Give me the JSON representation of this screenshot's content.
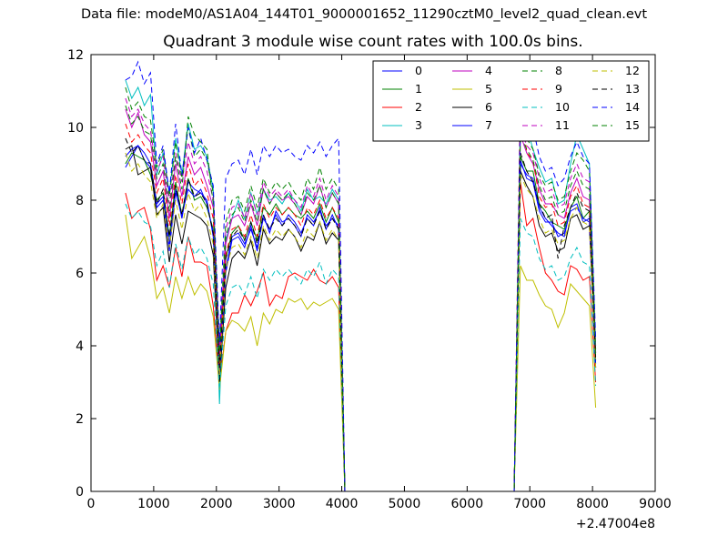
{
  "suptitle": "Data file: modeM0/AS1A04_144T01_9000001652_11290cztM0_level2_quad_clean.evt",
  "chart_data": {
    "type": "line",
    "title": "Quadrant 3 module wise count rates with 100.0s bins.",
    "xlabel": "",
    "ylabel": "",
    "x_offset_label": "+2.47004e8",
    "xlim": [
      0,
      9000
    ],
    "ylim": [
      0,
      12
    ],
    "x_ticks": [
      0,
      1000,
      2000,
      3000,
      4000,
      5000,
      6000,
      7000,
      8000,
      9000
    ],
    "y_ticks": [
      0,
      2,
      4,
      6,
      8,
      10,
      12
    ],
    "legend_position": "top-right",
    "x": [
      550,
      650,
      750,
      850,
      950,
      1050,
      1150,
      1250,
      1350,
      1450,
      1550,
      1650,
      1750,
      1850,
      1950,
      2050,
      2150,
      2250,
      2350,
      2450,
      2550,
      2650,
      2750,
      2850,
      2950,
      3050,
      3150,
      3250,
      3350,
      3450,
      3550,
      3650,
      3750,
      3850,
      3950,
      4050,
      6750,
      6850,
      6950,
      7050,
      7150,
      7250,
      7350,
      7450,
      7550,
      7650,
      7750,
      7850,
      7950,
      8050
    ],
    "series": [
      {
        "name": "0",
        "color": "#0000ff",
        "dash": "solid",
        "values": [
          8.9,
          9.2,
          9.5,
          9.1,
          8.9,
          7.8,
          8.0,
          6.6,
          8.3,
          7.5,
          8.5,
          8.3,
          8.2,
          8.0,
          7.0,
          3.3,
          6.0,
          6.9,
          7.0,
          6.7,
          7.3,
          6.6,
          7.6,
          7.1,
          7.7,
          7.4,
          7.5,
          7.3,
          7.0,
          7.6,
          7.4,
          7.7,
          7.3,
          7.5,
          7.3,
          0,
          0,
          9.0,
          8.7,
          8.6,
          7.8,
          7.5,
          7.3,
          7.1,
          7.0,
          7.8,
          7.9,
          7.4,
          7.5,
          3.5
        ]
      },
      {
        "name": "1",
        "color": "#008000",
        "dash": "solid",
        "values": [
          9.0,
          9.3,
          9.2,
          9.1,
          8.7,
          8.0,
          8.2,
          7.0,
          8.5,
          7.6,
          8.6,
          8.0,
          8.1,
          7.8,
          7.2,
          3.5,
          6.4,
          7.1,
          7.3,
          6.9,
          7.4,
          6.9,
          7.8,
          7.6,
          7.9,
          7.6,
          7.8,
          7.6,
          7.5,
          7.7,
          7.5,
          7.9,
          7.4,
          7.8,
          7.4,
          0,
          0,
          9.2,
          8.8,
          8.8,
          7.9,
          7.7,
          7.4,
          7.3,
          7.2,
          7.8,
          8.1,
          7.5,
          7.7,
          3.6
        ]
      },
      {
        "name": "2",
        "color": "#ff0000",
        "dash": "solid",
        "values": [
          8.2,
          7.5,
          7.7,
          7.8,
          7.2,
          5.8,
          6.2,
          5.6,
          6.7,
          5.9,
          7.0,
          6.3,
          6.3,
          6.2,
          5.1,
          3.0,
          4.4,
          4.9,
          4.9,
          5.4,
          5.1,
          5.5,
          6.0,
          5.1,
          5.4,
          5.3,
          5.9,
          6.0,
          5.9,
          5.8,
          6.1,
          5.8,
          5.7,
          5.9,
          5.6,
          0,
          0,
          8.5,
          7.3,
          7.5,
          6.7,
          6.0,
          5.8,
          5.5,
          5.4,
          6.2,
          6.1,
          5.8,
          5.9,
          3.0
        ]
      },
      {
        "name": "3",
        "color": "#00bfbf",
        "dash": "solid",
        "values": [
          11.3,
          10.8,
          11.1,
          10.6,
          10.9,
          8.7,
          9.3,
          8.2,
          9.7,
          8.7,
          10.1,
          9.4,
          9.5,
          9.2,
          8.3,
          2.4,
          6.9,
          7.5,
          8.0,
          7.5,
          8.2,
          7.6,
          8.3,
          8.0,
          8.1,
          7.9,
          8.2,
          8.0,
          7.7,
          8.3,
          8.0,
          8.1,
          7.9,
          8.3,
          8.0,
          0,
          0,
          10.3,
          10.0,
          9.4,
          8.9,
          8.5,
          8.6,
          7.9,
          8.0,
          9.0,
          9.8,
          9.4,
          9.0,
          4.0
        ]
      },
      {
        "name": "4",
        "color": "#bf00bf",
        "dash": "solid",
        "values": [
          10.5,
          10.0,
          10.4,
          9.8,
          9.6,
          8.4,
          8.8,
          7.5,
          9.0,
          8.1,
          9.2,
          8.7,
          8.9,
          8.4,
          7.8,
          3.6,
          6.8,
          7.5,
          7.6,
          7.3,
          7.9,
          7.3,
          8.3,
          7.9,
          8.2,
          8.0,
          8.1,
          7.9,
          7.6,
          8.1,
          7.9,
          8.4,
          7.8,
          8.2,
          7.9,
          0,
          0,
          9.8,
          9.3,
          9.0,
          8.3,
          7.9,
          7.9,
          7.6,
          7.5,
          8.2,
          8.6,
          8.1,
          8.0,
          3.8
        ]
      },
      {
        "name": "5",
        "color": "#bfbf00",
        "dash": "solid",
        "values": [
          7.6,
          6.4,
          6.7,
          7.0,
          6.4,
          5.3,
          5.6,
          4.9,
          5.9,
          5.3,
          5.9,
          5.4,
          5.7,
          5.5,
          4.8,
          2.8,
          4.4,
          4.7,
          4.6,
          4.4,
          4.8,
          4.0,
          4.9,
          4.6,
          5.0,
          4.9,
          5.3,
          5.2,
          5.3,
          5.0,
          5.2,
          5.1,
          5.2,
          5.3,
          5.0,
          0,
          0,
          6.2,
          5.8,
          5.8,
          5.4,
          5.1,
          5.0,
          4.5,
          4.9,
          5.7,
          5.5,
          5.3,
          5.1,
          2.3
        ]
      },
      {
        "name": "6",
        "color": "#000000",
        "dash": "solid",
        "values": [
          9.4,
          9.5,
          8.7,
          8.8,
          8.9,
          7.6,
          7.8,
          6.3,
          7.6,
          6.8,
          7.7,
          7.6,
          7.5,
          7.3,
          6.5,
          3.0,
          5.6,
          6.4,
          6.6,
          6.4,
          6.9,
          6.2,
          7.2,
          6.8,
          7.0,
          6.9,
          7.2,
          7.0,
          6.6,
          7.0,
          6.9,
          7.4,
          6.8,
          7.1,
          6.9,
          0,
          0,
          8.8,
          8.4,
          8.1,
          7.3,
          7.0,
          7.1,
          6.6,
          6.7,
          7.5,
          7.6,
          7.2,
          7.3,
          3.4
        ]
      },
      {
        "name": "7",
        "color": "#0000ff",
        "dash": "solid",
        "values": [
          9.2,
          9.4,
          9.5,
          9.3,
          9.0,
          7.9,
          8.1,
          6.8,
          8.2,
          7.6,
          8.3,
          8.1,
          8.3,
          7.9,
          7.1,
          3.2,
          6.1,
          7.0,
          7.1,
          6.8,
          7.2,
          6.7,
          7.5,
          7.2,
          7.6,
          7.3,
          7.6,
          7.4,
          7.1,
          7.5,
          7.3,
          7.8,
          7.2,
          7.6,
          7.2,
          0,
          0,
          9.1,
          8.6,
          8.5,
          7.7,
          7.4,
          7.4,
          7.0,
          7.1,
          7.7,
          7.8,
          7.5,
          7.4,
          3.4
        ]
      },
      {
        "name": "8",
        "color": "#008000",
        "dash": "dashed",
        "values": [
          11.1,
          10.5,
          10.7,
          10.3,
          10.2,
          8.9,
          9.4,
          8.1,
          9.6,
          8.6,
          10.0,
          9.2,
          9.4,
          9.1,
          8.2,
          3.9,
          7.4,
          8.0,
          8.1,
          7.7,
          8.4,
          7.8,
          8.6,
          8.2,
          8.5,
          8.3,
          8.5,
          8.2,
          8.0,
          8.6,
          8.3,
          8.9,
          8.3,
          8.6,
          8.3,
          0,
          0,
          10.1,
          9.7,
          9.4,
          8.7,
          8.4,
          8.5,
          8.0,
          8.1,
          8.8,
          9.3,
          9.1,
          8.8,
          3.9
        ]
      },
      {
        "name": "9",
        "color": "#ff0000",
        "dash": "dashed",
        "values": [
          10.1,
          9.6,
          9.8,
          9.5,
          9.3,
          8.2,
          8.6,
          7.3,
          8.7,
          7.9,
          9.0,
          8.4,
          8.6,
          8.2,
          7.5,
          3.3,
          6.5,
          7.2,
          7.3,
          7.0,
          7.6,
          7.0,
          7.9,
          7.5,
          7.8,
          7.6,
          7.8,
          7.6,
          7.3,
          7.8,
          7.6,
          8.0,
          7.5,
          7.8,
          7.5,
          0,
          0,
          11.0,
          9.3,
          9.1,
          8.1,
          7.8,
          7.9,
          7.3,
          7.4,
          8.1,
          8.4,
          7.9,
          7.8,
          3.7
        ]
      },
      {
        "name": "10",
        "color": "#00bfbf",
        "dash": "dashed",
        "values": [
          7.9,
          7.5,
          7.7,
          7.4,
          7.3,
          6.2,
          6.6,
          5.6,
          6.8,
          6.1,
          7.0,
          6.5,
          6.7,
          6.4,
          5.7,
          2.8,
          5.1,
          5.6,
          5.7,
          5.4,
          5.9,
          5.3,
          6.1,
          5.8,
          6.1,
          5.9,
          6.1,
          5.9,
          5.7,
          6.1,
          5.9,
          6.3,
          5.7,
          6.1,
          5.9,
          0,
          0,
          7.5,
          7.1,
          7.0,
          6.4,
          6.1,
          6.2,
          5.8,
          5.9,
          6.4,
          6.7,
          6.3,
          6.2,
          2.9
        ]
      },
      {
        "name": "11",
        "color": "#bf00bf",
        "dash": "dashed",
        "values": [
          10.8,
          10.3,
          10.5,
          10.1,
          9.9,
          8.8,
          9.2,
          7.9,
          9.3,
          8.5,
          9.6,
          9.0,
          9.2,
          8.8,
          8.0,
          3.8,
          7.2,
          7.8,
          7.9,
          7.5,
          8.2,
          7.6,
          8.5,
          8.1,
          8.3,
          8.1,
          8.3,
          8.0,
          7.8,
          8.4,
          8.1,
          8.6,
          8.0,
          8.4,
          8.1,
          0,
          0,
          10.0,
          9.5,
          9.3,
          8.6,
          8.2,
          8.3,
          7.8,
          7.9,
          8.6,
          9.0,
          8.6,
          8.5,
          3.8
        ]
      },
      {
        "name": "12",
        "color": "#bfbf00",
        "dash": "dashed",
        "values": [
          9.3,
          8.8,
          9.0,
          8.7,
          8.5,
          7.5,
          7.9,
          6.7,
          8.0,
          7.2,
          8.2,
          7.7,
          7.9,
          7.5,
          6.8,
          3.2,
          6.1,
          6.7,
          6.8,
          6.5,
          7.0,
          6.4,
          7.3,
          6.9,
          7.2,
          7.0,
          7.2,
          7.0,
          6.7,
          7.2,
          7.0,
          7.4,
          6.9,
          7.2,
          6.9,
          0,
          0,
          8.7,
          8.3,
          8.1,
          7.5,
          7.1,
          7.2,
          6.8,
          6.9,
          7.5,
          7.8,
          7.4,
          7.3,
          3.4
        ]
      },
      {
        "name": "13",
        "color": "#000000",
        "dash": "dashed",
        "values": [
          9.7,
          9.3,
          9.5,
          9.1,
          9.0,
          7.9,
          8.3,
          7.0,
          8.4,
          7.6,
          8.6,
          8.1,
          8.2,
          7.9,
          7.1,
          3.4,
          6.4,
          7.0,
          7.2,
          6.9,
          7.4,
          6.8,
          7.6,
          7.2,
          7.5,
          7.3,
          7.5,
          7.3,
          7.0,
          7.5,
          7.3,
          7.7,
          7.2,
          7.5,
          7.2,
          0,
          0,
          9.3,
          8.8,
          8.5,
          7.9,
          7.5,
          7.6,
          6.4,
          7.3,
          7.8,
          8.2,
          7.8,
          7.7,
          3.6
        ]
      },
      {
        "name": "14",
        "color": "#0000ff",
        "dash": "dashed",
        "values": [
          11.3,
          11.4,
          11.8,
          11.2,
          11.5,
          9.0,
          9.5,
          8.2,
          10.1,
          8.7,
          10.0,
          9.3,
          9.7,
          9.1,
          8.4,
          4.1,
          8.6,
          9.0,
          9.1,
          8.7,
          9.4,
          8.7,
          9.5,
          9.2,
          9.5,
          9.3,
          9.4,
          9.2,
          9.1,
          9.5,
          9.3,
          9.6,
          9.2,
          9.5,
          9.7,
          0,
          0,
          10.5,
          10.2,
          10.0,
          9.2,
          8.8,
          8.9,
          8.4,
          8.6,
          9.2,
          9.6,
          9.2,
          9.0,
          4.2
        ]
      },
      {
        "name": "15",
        "color": "#008000",
        "dash": "dashed",
        "values": [
          10.6,
          10.1,
          10.3,
          9.9,
          9.8,
          8.6,
          9.0,
          7.7,
          9.2,
          8.3,
          10.3,
          9.8,
          9.6,
          9.4,
          7.9,
          3.7,
          7.0,
          7.6,
          7.8,
          7.4,
          8.0,
          7.4,
          8.3,
          7.9,
          8.2,
          8.0,
          8.2,
          7.9,
          7.6,
          8.2,
          8.0,
          8.4,
          7.8,
          8.2,
          7.9,
          0,
          0,
          9.8,
          9.4,
          9.1,
          8.4,
          8.0,
          8.1,
          7.6,
          7.7,
          8.4,
          8.8,
          8.4,
          8.3,
          3.7
        ]
      }
    ]
  }
}
